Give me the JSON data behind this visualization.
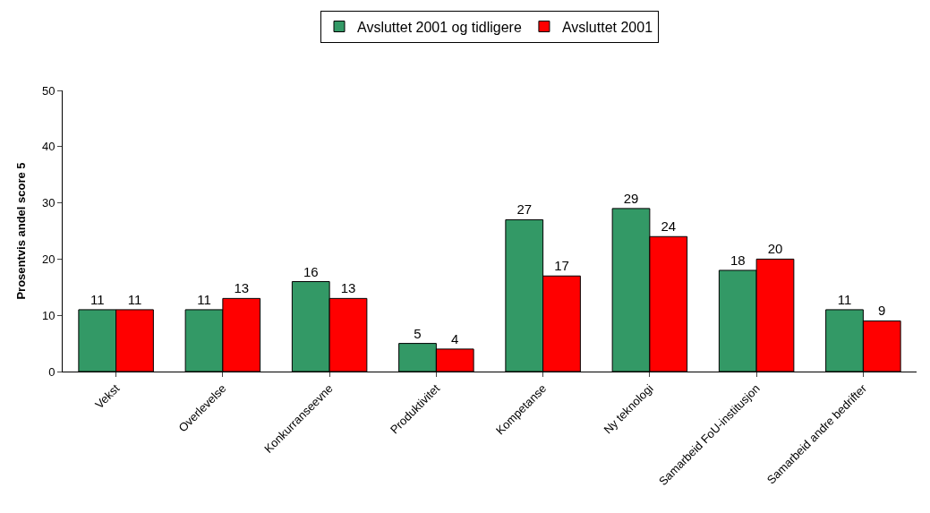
{
  "chart_data": {
    "type": "bar",
    "ylabel": "Prosentvis andel score 5",
    "categories": [
      "Vekst",
      "Overlevelse",
      "Konkurranseevne",
      "Produktivitet",
      "Kompetanse",
      "Ny teknologi",
      "Samarbeid FoU-institusjon",
      "Samarbeid andre bedrifter"
    ],
    "series": [
      {
        "name": "Avsluttet 2001 og tidligere",
        "color": "#339966",
        "values": [
          11,
          11,
          16,
          5,
          27,
          29,
          18,
          11
        ]
      },
      {
        "name": "Avsluttet 2001",
        "color": "#ff0000",
        "values": [
          11,
          13,
          13,
          4,
          17,
          24,
          20,
          9
        ]
      }
    ],
    "ylim": [
      0,
      50
    ],
    "yticks": [
      0,
      10,
      20,
      30,
      40,
      50
    ],
    "grid": false,
    "legend": "top",
    "data_labels": true
  }
}
